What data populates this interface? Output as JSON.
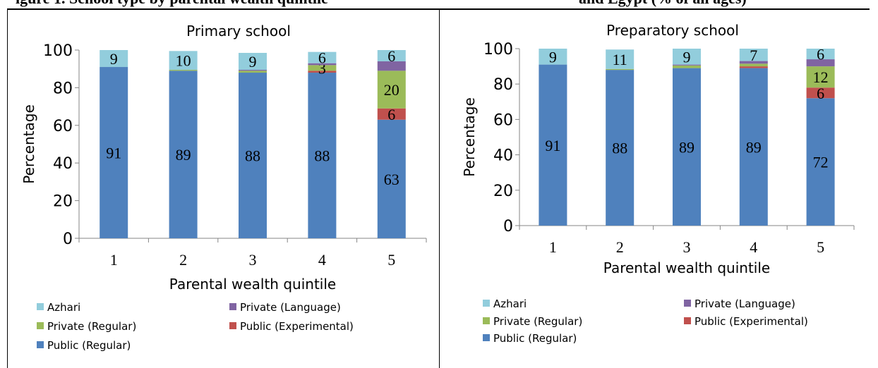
{
  "header": {
    "left_fragment": "igure 1. School type by parental wealth quintile",
    "right_fragment": "and Egypt (% of all ages)"
  },
  "colors": {
    "azhari": "#92CDDC",
    "private_language": "#8064A2",
    "private_regular": "#9BBB59",
    "public_experimental": "#C0504D",
    "public_regular": "#4F81BD"
  },
  "legend": {
    "azhari": "Azhari",
    "private_language": "Private (Language)",
    "private_regular": "Private (Regular)",
    "public_experimental": "Public (Experimental)",
    "public_regular": "Public (Regular)"
  },
  "chart_data": [
    {
      "type": "bar",
      "stacked": true,
      "title": "Primary school",
      "xlabel": "Parental wealth quintile",
      "ylabel": "Percentage",
      "ylim": [
        0,
        100
      ],
      "yticks": [
        "0",
        "20",
        "40",
        "60",
        "80",
        "100"
      ],
      "categories": [
        "1",
        "2",
        "3",
        "4",
        "5"
      ],
      "series": [
        {
          "name": "Public (Regular)",
          "key": "public_regular",
          "values": [
            91,
            89,
            88,
            88,
            63
          ],
          "labels": [
            "91",
            "89",
            "88",
            "88",
            "63"
          ]
        },
        {
          "name": "Public (Experimental)",
          "key": "public_experimental",
          "values": [
            0,
            0,
            0,
            1,
            6
          ],
          "labels": [
            "",
            "",
            "",
            "",
            "6"
          ]
        },
        {
          "name": "Private (Regular)",
          "key": "private_regular",
          "values": [
            0,
            0.5,
            1,
            3,
            20
          ],
          "labels": [
            "",
            "",
            "",
            "3",
            "20"
          ]
        },
        {
          "name": "Private (Language)",
          "key": "private_language",
          "values": [
            0,
            0,
            0.5,
            1,
            5
          ],
          "labels": [
            "",
            "",
            "",
            "",
            ""
          ]
        },
        {
          "name": "Azhari",
          "key": "azhari",
          "values": [
            9,
            10,
            9,
            6,
            6
          ],
          "labels": [
            "9",
            "10",
            "9",
            "6",
            "6"
          ]
        }
      ],
      "grid": false,
      "legend_position": "bottom"
    },
    {
      "type": "bar",
      "stacked": true,
      "title": "Preparatory school",
      "xlabel": "Parental wealth quintile",
      "ylabel": "Percentage",
      "ylim": [
        0,
        100
      ],
      "yticks": [
        "0",
        "20",
        "40",
        "60",
        "80",
        "100"
      ],
      "categories": [
        "1",
        "2",
        "3",
        "4",
        "5"
      ],
      "series": [
        {
          "name": "Public (Regular)",
          "key": "public_regular",
          "values": [
            91,
            88,
            89,
            89,
            72
          ],
          "labels": [
            "91",
            "88",
            "89",
            "89",
            "72"
          ]
        },
        {
          "name": "Public (Experimental)",
          "key": "public_experimental",
          "values": [
            0,
            0,
            0,
            1,
            6
          ],
          "labels": [
            "",
            "",
            "",
            "",
            "6"
          ]
        },
        {
          "name": "Private (Regular)",
          "key": "private_regular",
          "values": [
            0,
            0.5,
            1.5,
            1.5,
            12
          ],
          "labels": [
            "",
            "",
            "",
            "",
            "12"
          ]
        },
        {
          "name": "Private (Language)",
          "key": "private_language",
          "values": [
            0,
            0,
            0.5,
            1.5,
            4
          ],
          "labels": [
            "",
            "",
            "",
            "",
            ""
          ]
        },
        {
          "name": "Azhari",
          "key": "azhari",
          "values": [
            9,
            11,
            9,
            7,
            6
          ],
          "labels": [
            "9",
            "11",
            "9",
            "7",
            "6"
          ]
        }
      ],
      "grid": false,
      "legend_position": "bottom"
    }
  ]
}
